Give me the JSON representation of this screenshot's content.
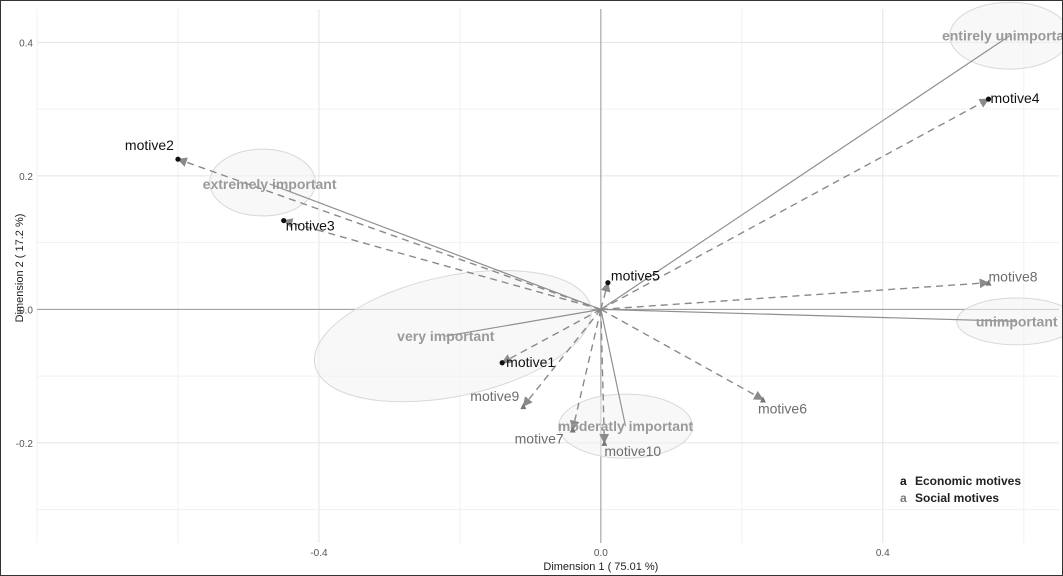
{
  "chart_data": {
    "type": "scatter",
    "title": "",
    "xlabel": "Dimension 1 ( 75.01 %)",
    "ylabel": "Dimension 2 ( 17.2 %)",
    "xlim": [
      -0.8,
      0.65
    ],
    "ylim": [
      -0.35,
      0.45
    ],
    "x_ticks": [
      -0.4,
      0.0,
      0.4
    ],
    "x_tick_labels": [
      "-0.4",
      "0.0",
      "0.4"
    ],
    "y_ticks": [
      -0.2,
      0.0,
      0.2,
      0.4
    ],
    "y_tick_labels": [
      "-0.2",
      "0.0",
      "0.2",
      "0.4"
    ],
    "grid": true,
    "series": [
      {
        "name": "Economic motives",
        "color": "#111111",
        "points": [
          {
            "label": "motive1",
            "x": -0.14,
            "y": -0.08
          },
          {
            "label": "motive2",
            "x": -0.6,
            "y": 0.225
          },
          {
            "label": "motive3",
            "x": -0.45,
            "y": 0.133
          },
          {
            "label": "motive4",
            "x": 0.55,
            "y": 0.315
          },
          {
            "label": "motive5",
            "x": 0.01,
            "y": 0.04
          }
        ]
      },
      {
        "name": "Social motives",
        "color": "#777777",
        "points": [
          {
            "label": "motive6",
            "x": 0.23,
            "y": -0.135
          },
          {
            "label": "motive7",
            "x": -0.04,
            "y": -0.18
          },
          {
            "label": "motive8",
            "x": 0.55,
            "y": 0.04
          },
          {
            "label": "motive9",
            "x": -0.11,
            "y": -0.145
          },
          {
            "label": "motive10",
            "x": 0.005,
            "y": -0.2
          }
        ]
      }
    ],
    "categories": [
      {
        "label": "entirely unimportant",
        "x": 0.58,
        "y": 0.41
      },
      {
        "label": "unimportant",
        "x": 0.59,
        "y": -0.018
      },
      {
        "label": "extremely important",
        "x": -0.47,
        "y": 0.188
      },
      {
        "label": "very important",
        "x": -0.22,
        "y": -0.04
      },
      {
        "label": "moderatly important",
        "x": 0.035,
        "y": -0.175
      }
    ],
    "legend": {
      "position": "bottom-right",
      "symbol": "a"
    }
  }
}
